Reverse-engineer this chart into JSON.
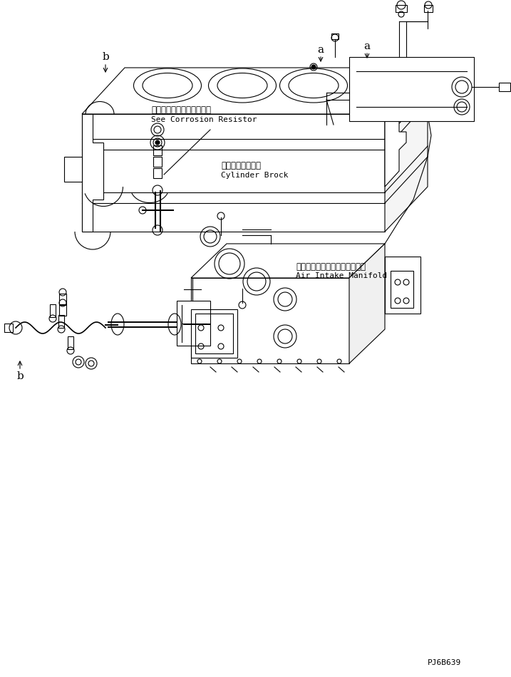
{
  "background_color": "#ffffff",
  "line_color": "#000000",
  "text_color": "#000000",
  "figsize": [
    7.17,
    9.5
  ],
  "dpi": 100,
  "labels": {
    "corrosion_jp": "コロージョンレジスタ参照",
    "corrosion_en": "See Corrosion Resistor",
    "air_intake_jp": "エアーインテークマニホールド",
    "air_intake_en": "Air Intake Manifold",
    "cylinder_jp": "シリンダブロック",
    "cylinder_en": "Cylinder Brock",
    "part_number": "PJ6B639",
    "label_a1": "a",
    "label_a2": "a",
    "label_b1": "b",
    "label_b2": "b"
  },
  "font_sizes": {
    "label_letter": 10,
    "jp_text": 8.5,
    "en_text": 8,
    "part_number": 8
  }
}
